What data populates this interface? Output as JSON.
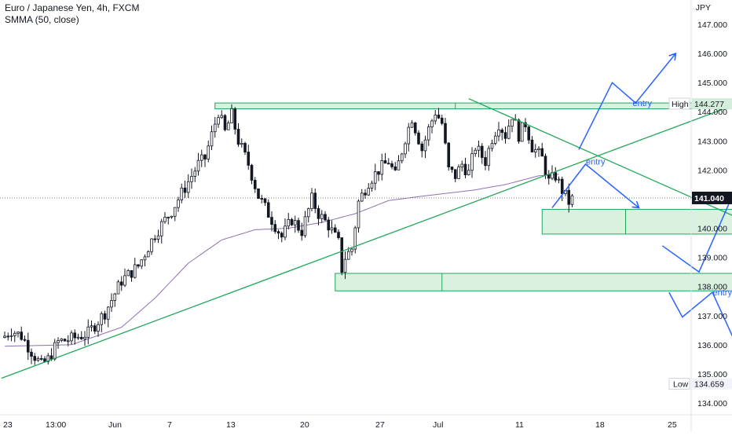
{
  "header": {
    "symbol": "Euro / Japanese Yen, 4h, FXCM",
    "indicator": "SMMA (50, close)"
  },
  "colors": {
    "candle": "#131722",
    "trendline": "#22a65a",
    "smma": "#8e6fb6",
    "arrows": "#2962ff",
    "zone_fill": "#d4eedb",
    "zone_border": "#22a65a",
    "price_tag_bg": "#131722"
  },
  "chart_data": {
    "type": "candlestick",
    "currency": "JPY",
    "ylim": [
      133.6,
      147.5
    ],
    "y_ticks": [
      134,
      135,
      136,
      137,
      138,
      139,
      140,
      141,
      142,
      143,
      144,
      145,
      146,
      147
    ],
    "y_tick_labels": [
      "134.000",
      "135.000",
      "136.000",
      "137.000",
      "138.000",
      "139.000",
      "140.000",
      "141.000",
      "142.000",
      "143.000",
      "144.000",
      "145.000",
      "146.000",
      "147.000"
    ],
    "x_tick_labels": [
      "23",
      "13:00",
      "Jun",
      "7",
      "13",
      "20",
      "27",
      "Jul",
      "11",
      "18",
      "25"
    ],
    "bar_range": [
      0,
      200
    ],
    "candle_anchors": [
      [
        0,
        136.3
      ],
      [
        2,
        136.5
      ],
      [
        5,
        136.3
      ],
      [
        9,
        135.6
      ],
      [
        11,
        135.3
      ],
      [
        13,
        135.5
      ],
      [
        16,
        136.1
      ],
      [
        20,
        136.2
      ],
      [
        25,
        136.4
      ],
      [
        30,
        137.1
      ],
      [
        35,
        138.2
      ],
      [
        40,
        138.7
      ],
      [
        45,
        139.8
      ],
      [
        50,
        140.6
      ],
      [
        55,
        141.6
      ],
      [
        58,
        142.2
      ],
      [
        60,
        142.4
      ],
      [
        62,
        143.2
      ],
      [
        64,
        144.0
      ],
      [
        66,
        143.3
      ],
      [
        68,
        143.9
      ],
      [
        70,
        143.0
      ],
      [
        73,
        142.2
      ],
      [
        76,
        141.1
      ],
      [
        80,
        140.3
      ],
      [
        83,
        139.7
      ],
      [
        86,
        140.3
      ],
      [
        89,
        139.9
      ],
      [
        92,
        141.0
      ],
      [
        94,
        140.5
      ],
      [
        97,
        140.1
      ],
      [
        100,
        139.5
      ],
      [
        101,
        138.6
      ],
      [
        102,
        139.0
      ],
      [
        104,
        139.3
      ],
      [
        106,
        140.9
      ],
      [
        109,
        141.6
      ],
      [
        112,
        142.0
      ],
      [
        115,
        142.3
      ],
      [
        117,
        141.8
      ],
      [
        120,
        143.1
      ],
      [
        122,
        143.8
      ],
      [
        125,
        142.7
      ],
      [
        127,
        143.4
      ],
      [
        129,
        144.0
      ],
      [
        131,
        143.6
      ],
      [
        133,
        142.0
      ],
      [
        135,
        141.8
      ],
      [
        137,
        142.2
      ],
      [
        139,
        141.9
      ],
      [
        141,
        142.8
      ],
      [
        144,
        142.3
      ],
      [
        146,
        143.1
      ],
      [
        148,
        143.6
      ],
      [
        150,
        143.2
      ],
      [
        152,
        143.9
      ],
      [
        154,
        143.2
      ],
      [
        156,
        143.6
      ],
      [
        158,
        142.8
      ],
      [
        161,
        142.4
      ],
      [
        163,
        141.6
      ],
      [
        165,
        141.8
      ],
      [
        167,
        141.3
      ],
      [
        169,
        140.9
      ],
      [
        170,
        141.0
      ]
    ],
    "smma_anchors": [
      [
        0,
        135.95
      ],
      [
        20,
        136.0
      ],
      [
        35,
        136.6
      ],
      [
        45,
        137.6
      ],
      [
        55,
        138.8
      ],
      [
        65,
        139.6
      ],
      [
        75,
        139.95
      ],
      [
        85,
        140.0
      ],
      [
        95,
        140.2
      ],
      [
        105,
        140.5
      ],
      [
        115,
        140.95
      ],
      [
        125,
        141.1
      ],
      [
        140,
        141.3
      ],
      [
        150,
        141.5
      ],
      [
        160,
        141.8
      ],
      [
        166,
        141.85
      ]
    ],
    "trendlines": [
      {
        "name": "rising-trendline",
        "from": [
          -1,
          134.85
        ],
        "to": [
          274,
          146.6
        ]
      },
      {
        "name": "falling-trendline",
        "from": [
          139,
          144.45
        ],
        "to": [
          271,
          137.75
        ]
      }
    ],
    "zones": [
      {
        "name": "resistance-zone",
        "x": [
          63,
          248
        ],
        "y": [
          144.1,
          144.3
        ],
        "divider": 135
      },
      {
        "name": "upper-demand-zone",
        "x": [
          161,
          256
        ],
        "y": [
          139.8,
          140.65
        ],
        "divider": 186
      },
      {
        "name": "lower-demand-zone",
        "x": [
          99,
          256
        ],
        "y": [
          137.85,
          138.45
        ],
        "divider": 131
      }
    ],
    "scenario_paths": [
      {
        "name": "bullish-scenario-path",
        "points": [
          [
            172,
            142.7
          ],
          [
            182,
            145.0
          ],
          [
            189,
            144.3
          ],
          [
            201,
            146.0
          ]
        ]
      },
      {
        "name": "bearish-scenario-path",
        "points": [
          [
            164,
            140.7
          ],
          [
            174,
            142.2
          ],
          [
            190,
            140.7
          ]
        ]
      },
      {
        "name": "reversal-scenario-path",
        "points": [
          [
            197,
            139.4
          ],
          [
            208,
            138.5
          ],
          [
            221,
            141.9
          ],
          [
            232,
            140.7
          ],
          [
            254,
            143.8
          ]
        ]
      },
      {
        "name": "deep-drop-scenario-path",
        "points": [
          [
            199,
            137.8
          ],
          [
            203,
            136.95
          ],
          [
            212,
            137.8
          ],
          [
            220,
            135.8
          ]
        ]
      }
    ],
    "entries": [
      {
        "label": "entry",
        "at": [
          191,
          144.2
        ]
      },
      {
        "label": "entry",
        "at": [
          177,
          142.18
        ]
      },
      {
        "label": "entry",
        "at": [
          238,
          140.8
        ]
      },
      {
        "label": "entry",
        "at": [
          215,
          137.7
        ]
      }
    ],
    "price_tags": {
      "high_label": "High",
      "high_value": "144.277",
      "current_value": "141.040",
      "low_label": "Low",
      "low_value": "134.659"
    }
  }
}
